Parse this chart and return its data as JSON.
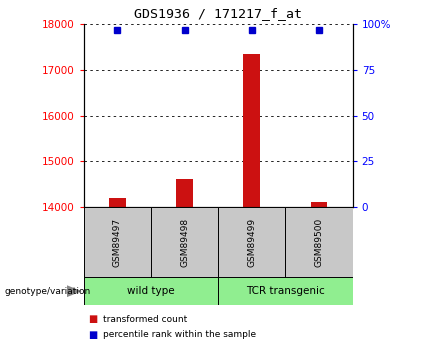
{
  "title": "GDS1936 / 171217_f_at",
  "samples": [
    "GSM89497",
    "GSM89498",
    "GSM89499",
    "GSM89500"
  ],
  "transformed_counts": [
    14200,
    14620,
    17350,
    14120
  ],
  "percentile_ranks": [
    100,
    100,
    100,
    100
  ],
  "groups": [
    {
      "label": "wild type",
      "samples": [
        0,
        1
      ],
      "color": "#90ee90"
    },
    {
      "label": "TCR transgenic",
      "samples": [
        2,
        3
      ],
      "color": "#90ee90"
    }
  ],
  "ylim_left": [
    14000,
    18000
  ],
  "yticks_left": [
    14000,
    15000,
    16000,
    17000,
    18000
  ],
  "ylim_right": [
    0,
    100
  ],
  "yticks_right": [
    0,
    25,
    50,
    75,
    100
  ],
  "bar_color": "#cc1111",
  "dot_color": "#0000cc",
  "bar_width": 0.25,
  "legend_items": [
    {
      "label": "transformed count",
      "color": "#cc1111"
    },
    {
      "label": "percentile rank within the sample",
      "color": "#0000cc"
    }
  ],
  "sample_box_color": "#c8c8c8",
  "group_arrow_color": "#888888"
}
